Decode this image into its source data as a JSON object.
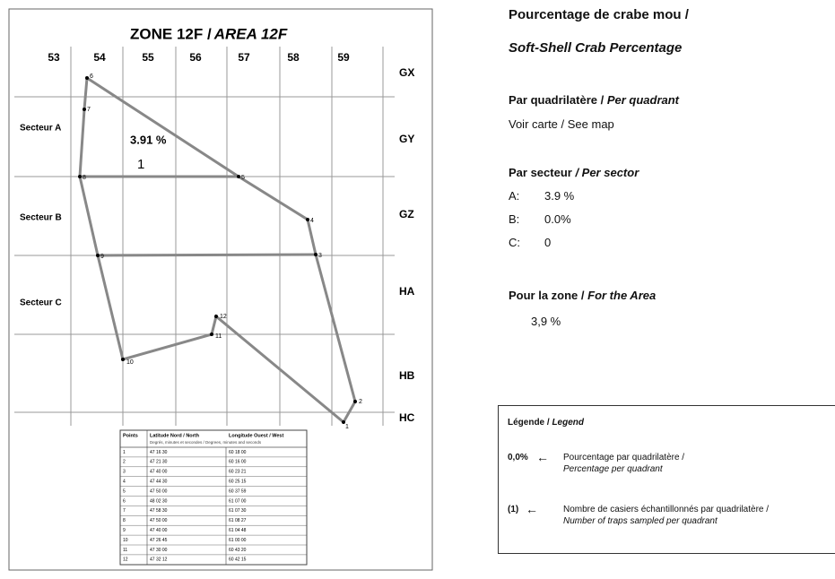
{
  "map": {
    "title": "ZONE 12F / ",
    "title_italic": "AREA 12F",
    "columns": [
      "53",
      "54",
      "55",
      "56",
      "57",
      "58",
      "59"
    ],
    "rows": [
      "GX",
      "GY",
      "GZ",
      "HA",
      "HB",
      "HC"
    ],
    "sectors": [
      "Secteur A",
      "Secteur B",
      "Secteur C"
    ],
    "quadrant_percentage": "3.91 %",
    "quadrant_traps": "1",
    "points": [
      "1",
      "2",
      "3",
      "4",
      "5",
      "6",
      "7",
      "8",
      "9",
      "10",
      "11",
      "12"
    ]
  },
  "table": {
    "header": [
      "Points",
      "Latitude Nord / North",
      "Longitude Ouest / West"
    ],
    "subheader": "Degrés, minutes et secondes / Degrees, minutes and seconds",
    "rows": [
      [
        "1",
        "47 16 30",
        "60 18 00"
      ],
      [
        "2",
        "47 21 30",
        "60 16 00"
      ],
      [
        "3",
        "47 40 00",
        "60 23 21"
      ],
      [
        "4",
        "47 44 30",
        "60 25 15"
      ],
      [
        "5",
        "47 50 00",
        "60 37 59"
      ],
      [
        "6",
        "48 02 30",
        "61 07 00"
      ],
      [
        "7",
        "47 58 30",
        "61 07 30"
      ],
      [
        "8",
        "47 50 00",
        "61 08 27"
      ],
      [
        "9",
        "47 40 00",
        "61 04 48"
      ],
      [
        "10",
        "47 26 45",
        "61 00 00"
      ],
      [
        "11",
        "47 30 00",
        "60 43 20"
      ],
      [
        "12",
        "47 32 12",
        "60 42 15"
      ]
    ]
  },
  "summary": {
    "title": "Pourcentage de crabe mou /",
    "title_italic": "Soft-Shell Crab Percentage",
    "quadrant_heading": "Par quadrilatère / ",
    "quadrant_heading_italic": "Per quadrant",
    "quadrant_text": "Voir carte / See map",
    "sector_heading": "Par secteur ",
    "sector_heading_italic": "/ Per sector",
    "sectors": [
      [
        "A:",
        "3.9 %"
      ],
      [
        "B:",
        "0.0%"
      ],
      [
        "C:",
        "0"
      ]
    ],
    "area_heading": "Pour la zone / ",
    "area_heading_italic": "For the Area",
    "area_value": "3,9 %"
  },
  "legend": {
    "title": "Légende / ",
    "title_italic": "Legend",
    "items": [
      {
        "symbol": "0,0%",
        "text": "Pourcentage par quadrilatère /",
        "text_italic": "Percentage per quadrant"
      },
      {
        "symbol": "(1)",
        "text": "Nombre de casiers échantillonnés par quadrilatère /",
        "text_italic": "Number of traps sampled per quadrant"
      }
    ]
  }
}
